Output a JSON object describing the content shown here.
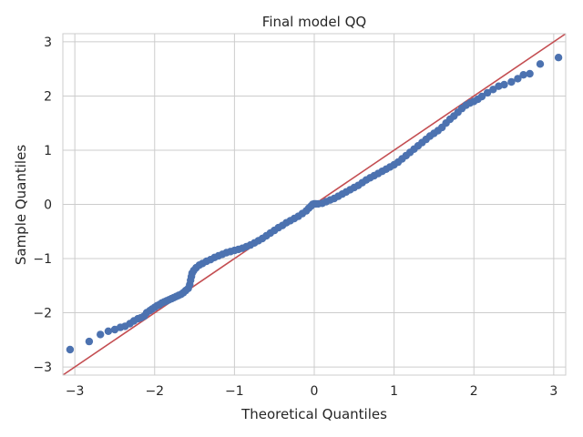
{
  "chart_data": {
    "type": "scatter",
    "title": "Final model QQ",
    "xlabel": "Theoretical Quantiles",
    "ylabel": "Sample Quantiles",
    "xlim": [
      -3.15,
      3.15
    ],
    "ylim": [
      -3.15,
      3.15
    ],
    "xticks": [
      -3,
      -2,
      -1,
      0,
      1,
      2,
      3
    ],
    "yticks": [
      -3,
      -2,
      -1,
      0,
      1,
      2,
      3
    ],
    "xtick_labels": [
      "−3",
      "−2",
      "−1",
      "0",
      "1",
      "2",
      "3"
    ],
    "ytick_labels": [
      "−3",
      "−2",
      "−1",
      "0",
      "1",
      "2",
      "3"
    ],
    "grid": true,
    "marker_color": "#4c72b0",
    "reference_line": {
      "type": "45-degree",
      "color": "#c44e52"
    },
    "series": [
      {
        "points": [
          [
            -3.06,
            -2.68
          ],
          [
            -2.82,
            -2.53
          ],
          [
            -2.68,
            -2.4
          ],
          [
            -2.58,
            -2.34
          ],
          [
            -2.5,
            -2.31
          ],
          [
            -2.43,
            -2.27
          ],
          [
            -2.37,
            -2.25
          ],
          [
            -2.31,
            -2.2
          ],
          [
            -2.26,
            -2.15
          ],
          [
            -2.21,
            -2.11
          ],
          [
            -2.17,
            -2.09
          ],
          [
            -2.13,
            -2.06
          ],
          [
            -2.1,
            -2.0
          ],
          [
            -2.06,
            -1.96
          ],
          [
            -2.03,
            -1.93
          ],
          [
            -2.0,
            -1.9
          ],
          [
            -1.97,
            -1.87
          ],
          [
            -1.94,
            -1.85
          ],
          [
            -1.91,
            -1.82
          ],
          [
            -1.88,
            -1.8
          ],
          [
            -1.85,
            -1.78
          ],
          [
            -1.82,
            -1.76
          ],
          [
            -1.79,
            -1.74
          ],
          [
            -1.76,
            -1.72
          ],
          [
            -1.73,
            -1.7
          ],
          [
            -1.7,
            -1.68
          ],
          [
            -1.67,
            -1.66
          ],
          [
            -1.64,
            -1.63
          ],
          [
            -1.61,
            -1.59
          ],
          [
            -1.58,
            -1.55
          ],
          [
            -1.56,
            -1.48
          ],
          [
            -1.55,
            -1.4
          ],
          [
            -1.54,
            -1.33
          ],
          [
            -1.53,
            -1.27
          ],
          [
            -1.51,
            -1.22
          ],
          [
            -1.48,
            -1.17
          ],
          [
            -1.44,
            -1.12
          ],
          [
            -1.4,
            -1.09
          ],
          [
            -1.35,
            -1.05
          ],
          [
            -1.3,
            -1.02
          ],
          [
            -1.25,
            -0.98
          ],
          [
            -1.2,
            -0.95
          ],
          [
            -1.15,
            -0.92
          ],
          [
            -1.1,
            -0.89
          ],
          [
            -1.05,
            -0.87
          ],
          [
            -1.0,
            -0.85
          ],
          [
            -0.95,
            -0.83
          ],
          [
            -0.9,
            -0.81
          ],
          [
            -0.85,
            -0.78
          ],
          [
            -0.8,
            -0.75
          ],
          [
            -0.75,
            -0.71
          ],
          [
            -0.7,
            -0.67
          ],
          [
            -0.65,
            -0.63
          ],
          [
            -0.6,
            -0.58
          ],
          [
            -0.55,
            -0.53
          ],
          [
            -0.5,
            -0.48
          ],
          [
            -0.45,
            -0.43
          ],
          [
            -0.4,
            -0.39
          ],
          [
            -0.35,
            -0.34
          ],
          [
            -0.3,
            -0.3
          ],
          [
            -0.25,
            -0.26
          ],
          [
            -0.2,
            -0.22
          ],
          [
            -0.15,
            -0.17
          ],
          [
            -0.1,
            -0.12
          ],
          [
            -0.07,
            -0.07
          ],
          [
            -0.04,
            -0.03
          ],
          [
            -0.02,
            0.0
          ],
          [
            0.0,
            0.01
          ],
          [
            0.02,
            0.01
          ],
          [
            0.05,
            0.01
          ],
          [
            0.1,
            0.02
          ],
          [
            0.15,
            0.05
          ],
          [
            0.2,
            0.08
          ],
          [
            0.25,
            0.11
          ],
          [
            0.3,
            0.15
          ],
          [
            0.35,
            0.19
          ],
          [
            0.4,
            0.23
          ],
          [
            0.45,
            0.27
          ],
          [
            0.5,
            0.31
          ],
          [
            0.55,
            0.35
          ],
          [
            0.6,
            0.4
          ],
          [
            0.65,
            0.45
          ],
          [
            0.7,
            0.49
          ],
          [
            0.75,
            0.53
          ],
          [
            0.8,
            0.57
          ],
          [
            0.85,
            0.61
          ],
          [
            0.9,
            0.65
          ],
          [
            0.95,
            0.69
          ],
          [
            1.0,
            0.73
          ],
          [
            1.05,
            0.78
          ],
          [
            1.1,
            0.84
          ],
          [
            1.15,
            0.9
          ],
          [
            1.2,
            0.96
          ],
          [
            1.25,
            1.02
          ],
          [
            1.3,
            1.08
          ],
          [
            1.35,
            1.14
          ],
          [
            1.4,
            1.2
          ],
          [
            1.45,
            1.26
          ],
          [
            1.5,
            1.31
          ],
          [
            1.55,
            1.36
          ],
          [
            1.6,
            1.42
          ],
          [
            1.65,
            1.5
          ],
          [
            1.7,
            1.57
          ],
          [
            1.75,
            1.63
          ],
          [
            1.8,
            1.7
          ],
          [
            1.85,
            1.77
          ],
          [
            1.9,
            1.83
          ],
          [
            1.95,
            1.87
          ],
          [
            2.0,
            1.9
          ],
          [
            2.05,
            1.94
          ],
          [
            2.1,
            1.99
          ],
          [
            2.17,
            2.06
          ],
          [
            2.24,
            2.12
          ],
          [
            2.31,
            2.18
          ],
          [
            2.38,
            2.21
          ],
          [
            2.47,
            2.26
          ],
          [
            2.55,
            2.32
          ],
          [
            2.62,
            2.39
          ],
          [
            2.7,
            2.41
          ],
          [
            2.83,
            2.59
          ],
          [
            3.06,
            2.71
          ]
        ]
      }
    ]
  }
}
